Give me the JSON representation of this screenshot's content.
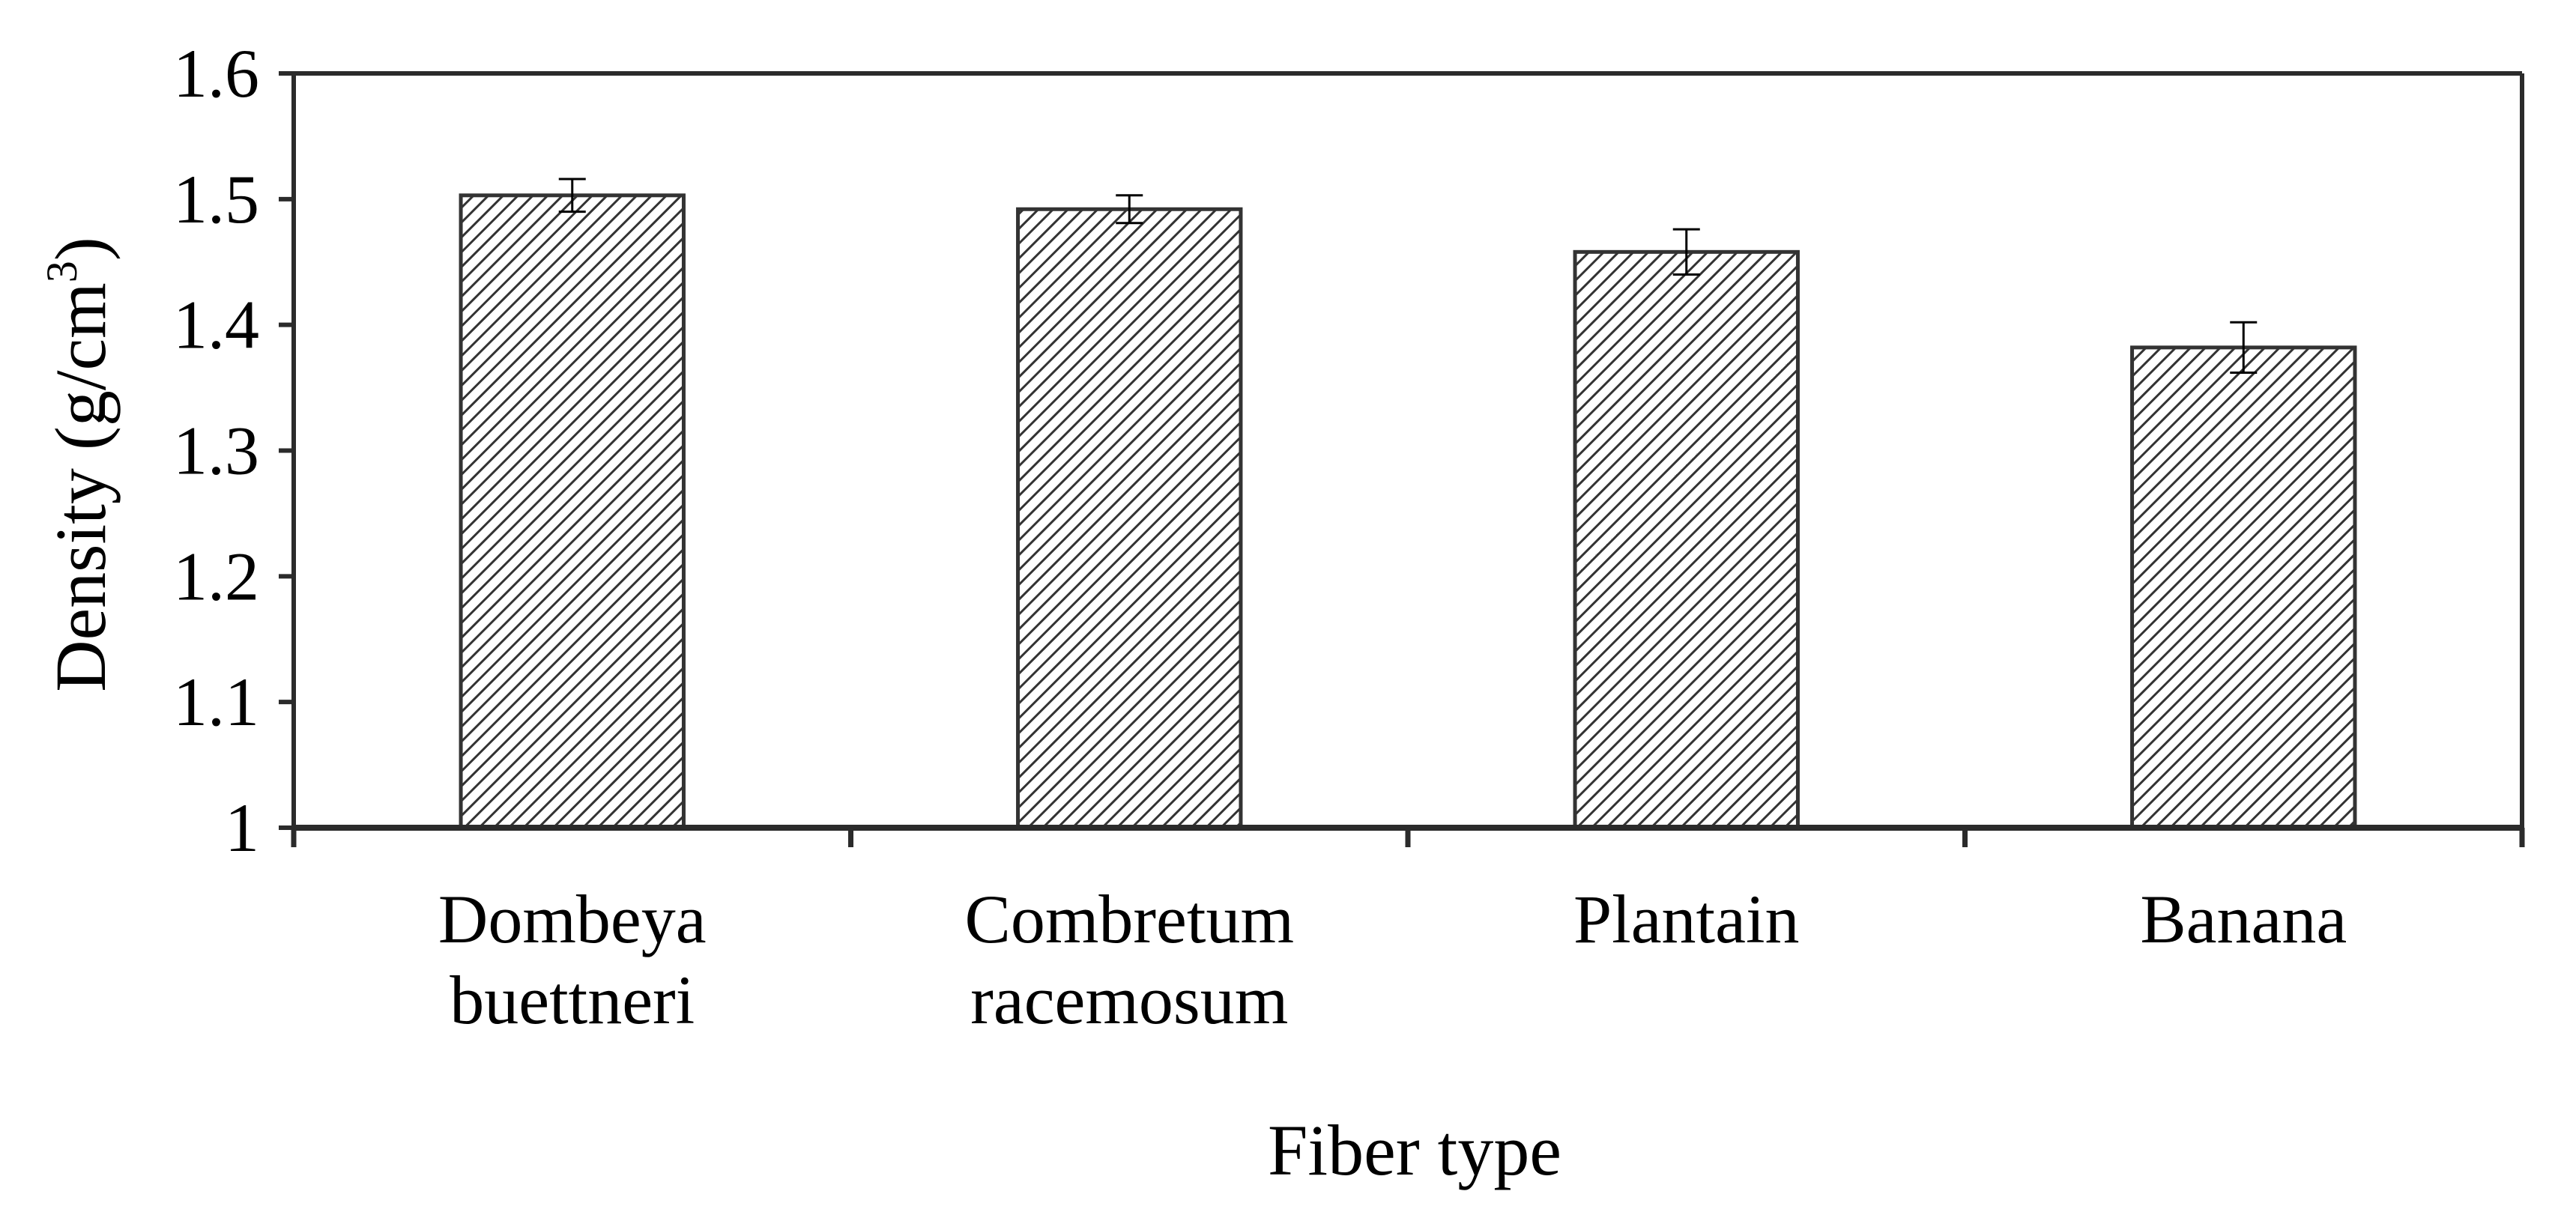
{
  "chart_data": {
    "type": "bar",
    "title": "",
    "categories": [
      [
        "Dombeya",
        "buettneri"
      ],
      [
        "Combretum",
        "racemosum"
      ],
      [
        "Plantain"
      ],
      [
        "Banana"
      ]
    ],
    "values": [
      1.503,
      1.492,
      1.458,
      1.382
    ],
    "errors": [
      0.013,
      0.011,
      0.018,
      0.02
    ],
    "xlabel": "Fiber type",
    "ylabel_main": "Density (g/cm",
    "ylabel_sup": "3",
    "ylabel_end": ")",
    "ylim": [
      1,
      1.6
    ],
    "yticks": [
      1,
      1.1,
      1.2,
      1.3,
      1.4,
      1.5,
      1.6
    ],
    "ytick_labels": [
      "1",
      "1.1",
      "1.2",
      "1.3",
      "1.4",
      "1.5",
      "1.6"
    ],
    "grid": false,
    "bar_pattern": "diagonal-hatch",
    "colors": {
      "axis": "#2b2b2b",
      "bar_border": "#333333",
      "hatch": "#333333",
      "bar_fill": "#ffffff"
    }
  }
}
